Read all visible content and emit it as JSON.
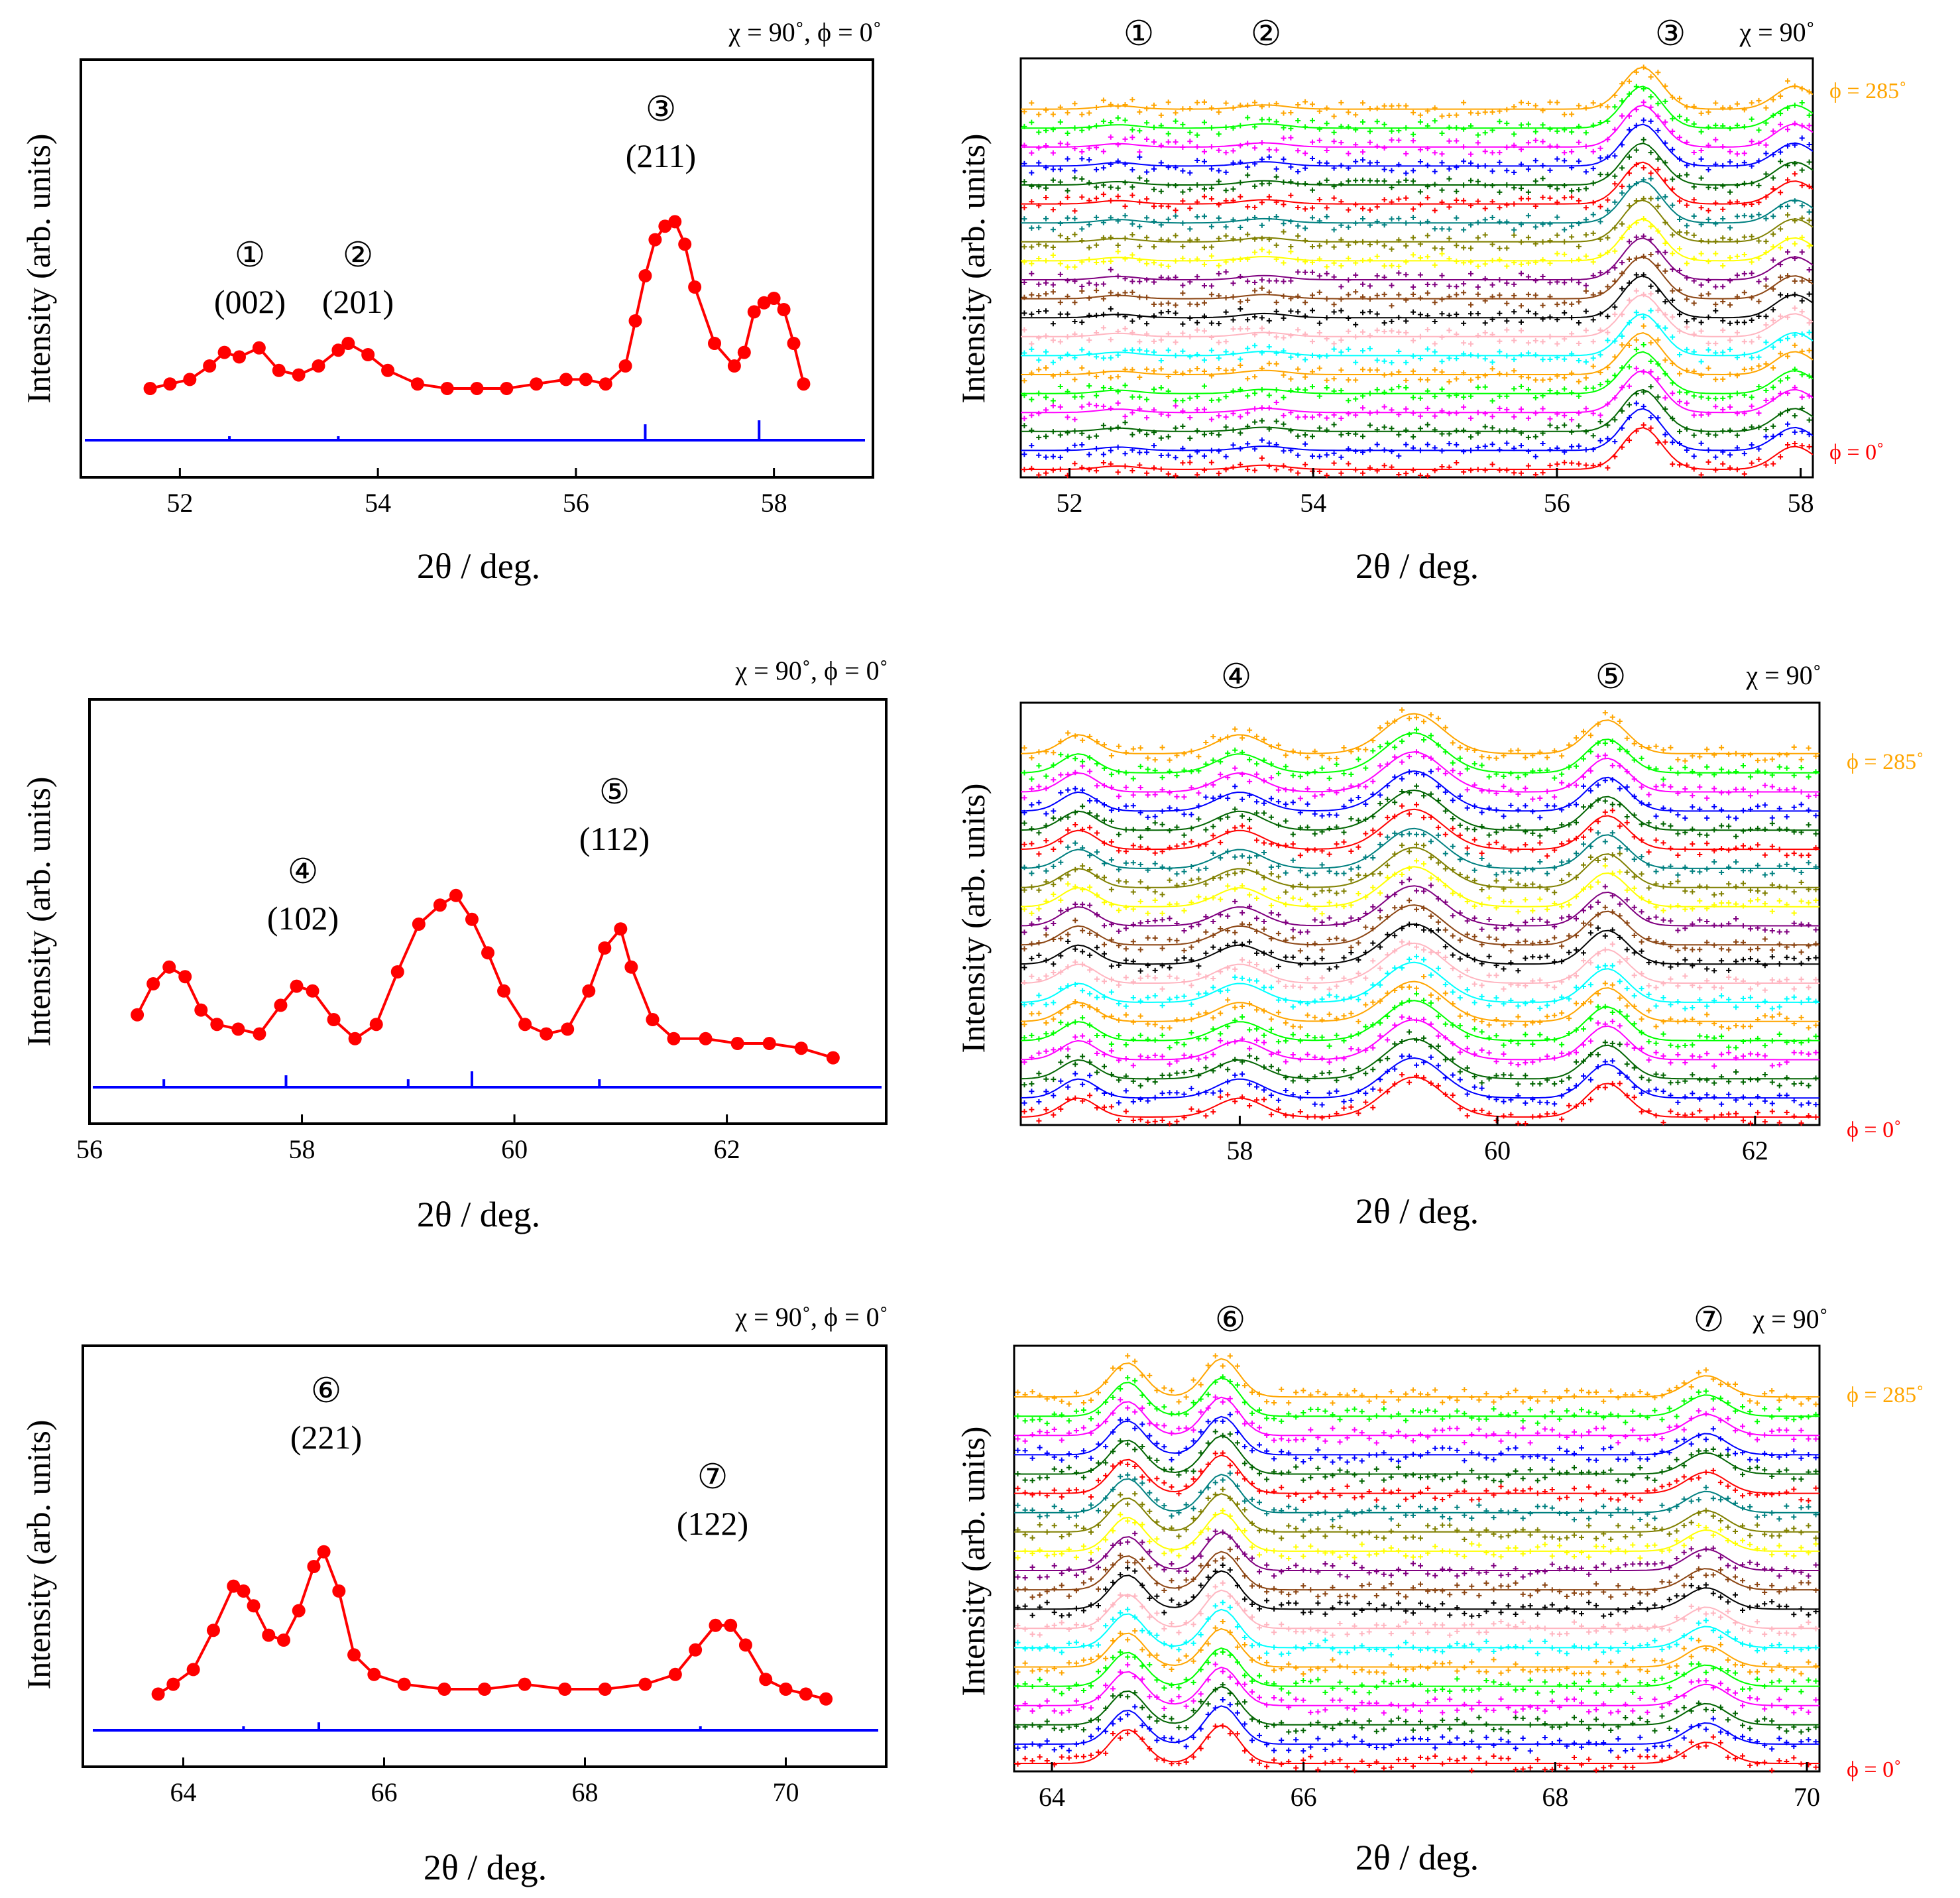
{
  "figure": {
    "xlabel": "2θ / deg.",
    "ylabel": "Intensity (arb. units)"
  },
  "panels": [
    {
      "header": "χ = 90˚, ϕ = 0˚",
      "xticks": [
        "52",
        "54",
        "56",
        "58"
      ],
      "peaks": [
        {
          "id": "①",
          "hkl": "(002)"
        },
        {
          "id": "②",
          "hkl": "(201)"
        },
        {
          "id": "③",
          "hkl": "(211)"
        }
      ]
    },
    {
      "header": "χ = 90˚, ϕ = 0˚",
      "xticks": [
        "56",
        "58",
        "60",
        "62"
      ],
      "peaks": [
        {
          "id": "④",
          "hkl": "(102)"
        },
        {
          "id": "⑤",
          "hkl": "(112)"
        }
      ]
    },
    {
      "header": "χ = 90˚, ϕ = 0˚",
      "xticks": [
        "64",
        "66",
        "68",
        "70"
      ],
      "peaks": [
        {
          "id": "⑥",
          "hkl": "(221)"
        },
        {
          "id": "⑦",
          "hkl": "(122)"
        }
      ]
    }
  ],
  "waterfall": [
    {
      "header": "χ = 90˚",
      "top_label": "ϕ = 285˚",
      "bottom_label": "ϕ = 0˚",
      "xticks": [
        "52",
        "54",
        "56",
        "58"
      ],
      "peak_ids": [
        "①",
        "②",
        "③"
      ]
    },
    {
      "header": "χ = 90˚",
      "top_label": "ϕ = 285˚",
      "bottom_label": "ϕ = 0˚",
      "xticks": [
        "58",
        "60",
        "62"
      ],
      "peak_ids": [
        "④",
        "⑤"
      ]
    },
    {
      "header": "χ = 90˚",
      "top_label": "ϕ = 285˚",
      "bottom_label": "ϕ = 0˚",
      "xticks": [
        "64",
        "66",
        "68",
        "70"
      ],
      "peak_ids": [
        "⑥",
        "⑦"
      ]
    }
  ],
  "chart_data": [
    {
      "type": "scatter",
      "xlabel": "2θ / deg.",
      "ylabel": "Intensity (arb. units)",
      "xlim": [
        51,
        59
      ],
      "ylim": [
        0,
        100
      ],
      "series_color": "#ff0000",
      "reference_color": "#0000ff",
      "x": [
        51.7,
        51.9,
        52.1,
        52.3,
        52.45,
        52.6,
        52.8,
        53.0,
        53.2,
        53.4,
        53.6,
        53.7,
        53.9,
        54.1,
        54.4,
        54.7,
        55.0,
        55.3,
        55.6,
        55.9,
        56.1,
        56.3,
        56.5,
        56.6,
        56.7,
        56.8,
        56.9,
        57.0,
        57.1,
        57.2,
        57.4,
        57.6,
        57.7,
        57.8,
        57.9,
        58.0,
        58.1,
        58.2,
        58.3
      ],
      "y": [
        10,
        12,
        14,
        20,
        26,
        24,
        28,
        18,
        16,
        20,
        27,
        30,
        25,
        18,
        12,
        10,
        10,
        10,
        12,
        14,
        14,
        12,
        20,
        40,
        60,
        76,
        82,
        84,
        74,
        55,
        30,
        20,
        26,
        44,
        48,
        50,
        45,
        30,
        12
      ],
      "reference_peaks": [
        {
          "x": 52.5,
          "h": 1
        },
        {
          "x": 53.6,
          "h": 1
        },
        {
          "x": 56.7,
          "h": 4
        },
        {
          "x": 57.85,
          "h": 5
        }
      ]
    },
    {
      "type": "scatter",
      "xlabel": "2θ / deg.",
      "ylabel": "Intensity (arb. units)",
      "xlim": [
        56,
        63.5
      ],
      "ylim": [
        0,
        100
      ],
      "series_color": "#ff0000",
      "reference_color": "#0000ff",
      "x": [
        56.45,
        56.6,
        56.75,
        56.9,
        57.05,
        57.2,
        57.4,
        57.6,
        57.8,
        57.95,
        58.1,
        58.3,
        58.5,
        58.7,
        58.9,
        59.1,
        59.3,
        59.45,
        59.6,
        59.75,
        59.9,
        60.1,
        60.3,
        60.5,
        60.7,
        60.85,
        61.0,
        61.1,
        61.3,
        61.5,
        61.8,
        62.1,
        62.4,
        62.7,
        63.0
      ],
      "y": [
        22,
        35,
        42,
        38,
        24,
        18,
        16,
        14,
        26,
        34,
        32,
        20,
        12,
        18,
        40,
        60,
        68,
        72,
        62,
        48,
        32,
        18,
        14,
        16,
        32,
        50,
        58,
        42,
        20,
        12,
        12,
        10,
        10,
        8,
        4
      ],
      "reference_peaks": [
        {
          "x": 56.7,
          "h": 2
        },
        {
          "x": 57.85,
          "h": 3
        },
        {
          "x": 59.0,
          "h": 2
        },
        {
          "x": 59.6,
          "h": 4
        },
        {
          "x": 60.8,
          "h": 2
        }
      ]
    },
    {
      "type": "scatter",
      "xlabel": "2θ / deg.",
      "ylabel": "Intensity (arb. units)",
      "xlim": [
        63,
        71
      ],
      "ylim": [
        0,
        100
      ],
      "series_color": "#ff0000",
      "reference_color": "#0000ff",
      "x": [
        63.75,
        63.9,
        64.1,
        64.3,
        64.5,
        64.6,
        64.7,
        64.85,
        65.0,
        65.15,
        65.3,
        65.4,
        65.55,
        65.7,
        65.9,
        66.2,
        66.6,
        67.0,
        67.4,
        67.8,
        68.2,
        68.6,
        68.9,
        69.1,
        69.3,
        69.45,
        69.6,
        69.8,
        70.0,
        70.2,
        70.4
      ],
      "y": [
        8,
        12,
        18,
        34,
        52,
        50,
        44,
        32,
        30,
        42,
        60,
        66,
        50,
        24,
        16,
        12,
        10,
        10,
        12,
        10,
        10,
        12,
        16,
        26,
        36,
        36,
        28,
        14,
        10,
        8,
        6
      ],
      "reference_peaks": [
        {
          "x": 64.6,
          "h": 1
        },
        {
          "x": 65.35,
          "h": 2
        },
        {
          "x": 69.15,
          "h": 1
        }
      ]
    }
  ],
  "waterfall_data": {
    "series_colors": [
      "#ff0000",
      "#0000ff",
      "#006400",
      "#ff00ff",
      "#00ff00",
      "#ffa500",
      "#00ffff",
      "#ffb6c1",
      "#000000",
      "#8b4513",
      "#800080",
      "#ffff00",
      "#808000",
      "#008080",
      "#ff0000",
      "#006400",
      "#0000ff",
      "#ff00ff",
      "#00ff00",
      "#ffa500"
    ],
    "panels": [
      {
        "xlim": [
          51.6,
          58.1
        ],
        "peaks": [
          {
            "x": 52.4,
            "h": 0.08,
            "w": 0.35
          },
          {
            "x": 53.6,
            "h": 0.1,
            "w": 0.4
          },
          {
            "x": 56.7,
            "h": 1.0,
            "w": 0.35
          },
          {
            "x": 57.95,
            "h": 0.55,
            "w": 0.35
          }
        ]
      },
      {
        "xlim": [
          56.3,
          62.5
        ],
        "peaks": [
          {
            "x": 56.75,
            "h": 0.45,
            "w": 0.3
          },
          {
            "x": 58.0,
            "h": 0.45,
            "w": 0.4
          },
          {
            "x": 59.35,
            "h": 0.95,
            "w": 0.5
          },
          {
            "x": 60.85,
            "h": 0.8,
            "w": 0.35
          }
        ]
      },
      {
        "xlim": [
          63.7,
          70.1
        ],
        "peaks": [
          {
            "x": 64.6,
            "h": 0.8,
            "w": 0.3
          },
          {
            "x": 65.35,
            "h": 0.9,
            "w": 0.3
          },
          {
            "x": 69.2,
            "h": 0.5,
            "w": 0.35
          }
        ]
      }
    ]
  }
}
